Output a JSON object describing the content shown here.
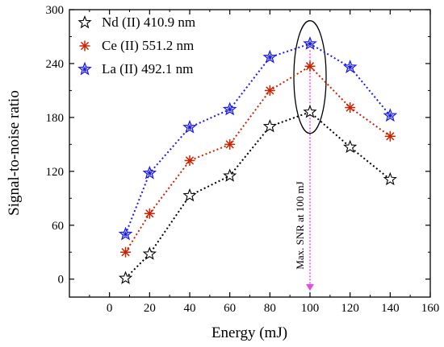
{
  "chart_data": {
    "type": "line",
    "xlabel": "Energy (mJ)",
    "ylabel": "Signal-to-noise ratio",
    "xlim": [
      -20,
      160
    ],
    "ylim": [
      -20,
      300
    ],
    "xticks": [
      0,
      20,
      40,
      60,
      80,
      100,
      120,
      140,
      160
    ],
    "yticks": [
      0,
      60,
      120,
      180,
      240,
      300
    ],
    "legend_position": "top-left",
    "grid": false,
    "series": [
      {
        "name": "Nd (II) 410.9 nm",
        "color": "#000000",
        "marker": "star",
        "x": [
          8,
          20,
          40,
          60,
          80,
          100,
          120,
          140
        ],
        "y": [
          1,
          28,
          93,
          115,
          170,
          186,
          147,
          111
        ]
      },
      {
        "name": "Ce (II) 551.2 nm",
        "color": "#cc2200",
        "marker": "asterisk",
        "x": [
          8,
          20,
          40,
          60,
          80,
          100,
          120,
          140
        ],
        "y": [
          30,
          73,
          132,
          150,
          210,
          237,
          191,
          159
        ]
      },
      {
        "name": "La (II) 492.1 nm",
        "color": "#1a1aee",
        "marker": "star-filled",
        "x": [
          8,
          20,
          40,
          60,
          80,
          100,
          120,
          140
        ],
        "y": [
          50,
          118,
          169,
          189,
          247,
          262,
          236,
          182
        ]
      }
    ],
    "annotations": {
      "vertical_line": {
        "x": 100,
        "color": "#ee44ee"
      },
      "label": "Max. SNR at 100 mJ",
      "ellipse_center": {
        "x": 100,
        "y": 225
      }
    }
  }
}
